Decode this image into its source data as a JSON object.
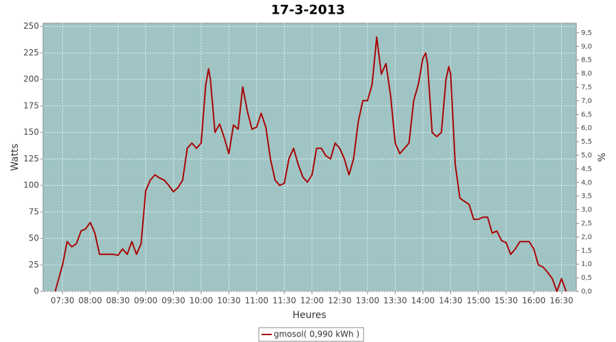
{
  "chart_data": {
    "type": "line",
    "title": "17-3-2013",
    "x_label": "Heures",
    "y_label": "Watts",
    "y2_label": "%",
    "x": [
      "07:22",
      "07:30",
      "07:35",
      "07:40",
      "07:45",
      "07:50",
      "07:55",
      "08:00",
      "08:05",
      "08:10",
      "08:15",
      "08:20",
      "08:25",
      "08:30",
      "08:35",
      "08:40",
      "08:45",
      "08:50",
      "08:55",
      "09:00",
      "09:05",
      "09:10",
      "09:15",
      "09:20",
      "09:25",
      "09:30",
      "09:35",
      "09:40",
      "09:45",
      "09:50",
      "09:55",
      "10:00",
      "10:05",
      "10:08",
      "10:10",
      "10:15",
      "10:20",
      "10:25",
      "10:30",
      "10:35",
      "10:40",
      "10:45",
      "10:50",
      "10:55",
      "11:00",
      "11:05",
      "11:10",
      "11:15",
      "11:20",
      "11:25",
      "11:30",
      "11:35",
      "11:40",
      "11:45",
      "11:50",
      "11:55",
      "12:00",
      "12:05",
      "12:10",
      "12:15",
      "12:20",
      "12:25",
      "12:30",
      "12:35",
      "12:40",
      "12:45",
      "12:50",
      "12:55",
      "13:00",
      "13:05",
      "13:10",
      "13:15",
      "13:20",
      "13:25",
      "13:30",
      "13:35",
      "13:40",
      "13:45",
      "13:50",
      "13:55",
      "14:00",
      "14:03",
      "14:05",
      "14:10",
      "14:15",
      "14:20",
      "14:25",
      "14:28",
      "14:30",
      "14:35",
      "14:40",
      "14:45",
      "14:50",
      "14:55",
      "15:00",
      "15:05",
      "15:10",
      "15:15",
      "15:20",
      "15:25",
      "15:30",
      "15:35",
      "15:40",
      "15:45",
      "15:50",
      "15:55",
      "16:00",
      "16:05",
      "16:10",
      "16:15",
      "16:20",
      "16:25",
      "16:30",
      "16:35"
    ],
    "series": [
      {
        "name": "gmosol( 0,990 kWh )",
        "color": "#aa0000",
        "values": [
          0,
          25,
          47,
          42,
          45,
          57,
          59,
          65,
          55,
          35,
          35,
          35,
          35,
          34,
          40,
          35,
          47,
          35,
          45,
          95,
          105,
          110,
          107,
          105,
          100,
          94,
          98,
          105,
          135,
          140,
          135,
          140,
          195,
          210,
          200,
          150,
          158,
          145,
          130,
          157,
          153,
          193,
          170,
          153,
          155,
          168,
          155,
          125,
          105,
          100,
          102,
          125,
          135,
          120,
          108,
          103,
          110,
          135,
          135,
          128,
          125,
          140,
          135,
          125,
          110,
          125,
          160,
          180,
          180,
          195,
          240,
          205,
          215,
          185,
          140,
          130,
          135,
          140,
          180,
          195,
          220,
          225,
          215,
          150,
          146,
          150,
          200,
          212,
          205,
          120,
          88,
          85,
          82,
          68,
          68,
          70,
          70,
          55,
          57,
          48,
          46,
          35,
          40,
          47,
          47,
          47,
          40,
          25,
          23,
          18,
          12,
          0,
          12,
          0
        ]
      }
    ],
    "xlim": [
      "07:09",
      "16:46"
    ],
    "xticks": [
      "07:30",
      "08:00",
      "08:30",
      "09:00",
      "09:30",
      "10:00",
      "10:30",
      "11:00",
      "11:30",
      "12:00",
      "12:30",
      "13:00",
      "13:30",
      "14:00",
      "14:30",
      "15:00",
      "15:30",
      "16:00",
      "16:30"
    ],
    "ylim": [
      0,
      253
    ],
    "yticks": [
      0,
      25,
      50,
      75,
      100,
      125,
      150,
      175,
      200,
      225,
      250
    ],
    "y2lim": [
      0,
      9.85
    ],
    "y2ticks": [
      {
        "value": 0,
        "label": "0,0"
      },
      {
        "value": 0.5,
        "label": "0,5"
      },
      {
        "value": 1,
        "label": "1,0"
      },
      {
        "value": 1.5,
        "label": "1,5"
      },
      {
        "value": 2,
        "label": "2,0"
      },
      {
        "value": 2.5,
        "label": "2,5"
      },
      {
        "value": 3,
        "label": "3,0"
      },
      {
        "value": 3.5,
        "label": "3,5"
      },
      {
        "value": 4,
        "label": "4,0"
      },
      {
        "value": 4.5,
        "label": "4,5"
      },
      {
        "value": 5,
        "label": "5,0"
      },
      {
        "value": 5.5,
        "label": "5,5"
      },
      {
        "value": 6,
        "label": "6,0"
      },
      {
        "value": 6.5,
        "label": "6,5"
      },
      {
        "value": 7,
        "label": "7,0"
      },
      {
        "value": 7.5,
        "label": "7,5"
      },
      {
        "value": 8,
        "label": "8,0"
      },
      {
        "value": 8.5,
        "label": "8,5"
      },
      {
        "value": 9,
        "label": "9,0"
      },
      {
        "value": 9.5,
        "label": "9,5"
      }
    ],
    "grid": true,
    "plot_background": "#a0c4c4",
    "legend": "bottom"
  }
}
